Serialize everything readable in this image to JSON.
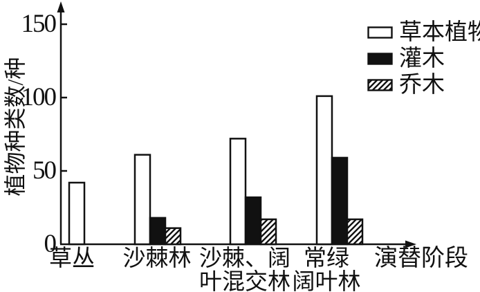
{
  "chart_data": {
    "type": "bar",
    "title": "",
    "ylabel": "植物种类数/种",
    "xlabel": "演替阶段",
    "ylim": [
      0,
      160
    ],
    "yticks": [
      0,
      50,
      100,
      150
    ],
    "grid": false,
    "legend_position": "top-right",
    "axis_color": "#111111",
    "bar_styles": {
      "white": "#ffffff",
      "black": "#111111",
      "hatch": "diagonal-lines"
    },
    "categories": [
      "草丛",
      "沙棘林",
      "沙棘、阔叶混交林",
      "常绿阔叶林"
    ],
    "categories_display": [
      [
        "草丛",
        ""
      ],
      [
        "沙棘林",
        ""
      ],
      [
        "沙棘、阔",
        "叶混交林"
      ],
      [
        "常绿",
        "阔叶林"
      ]
    ],
    "series": [
      {
        "name": "草本植物",
        "style": "white",
        "values": [
          42,
          61,
          72,
          101
        ]
      },
      {
        "name": "灌木",
        "style": "black",
        "values": [
          0,
          18,
          32,
          59
        ]
      },
      {
        "name": "乔木",
        "style": "hatch",
        "values": [
          0,
          11,
          17,
          17
        ]
      }
    ]
  }
}
